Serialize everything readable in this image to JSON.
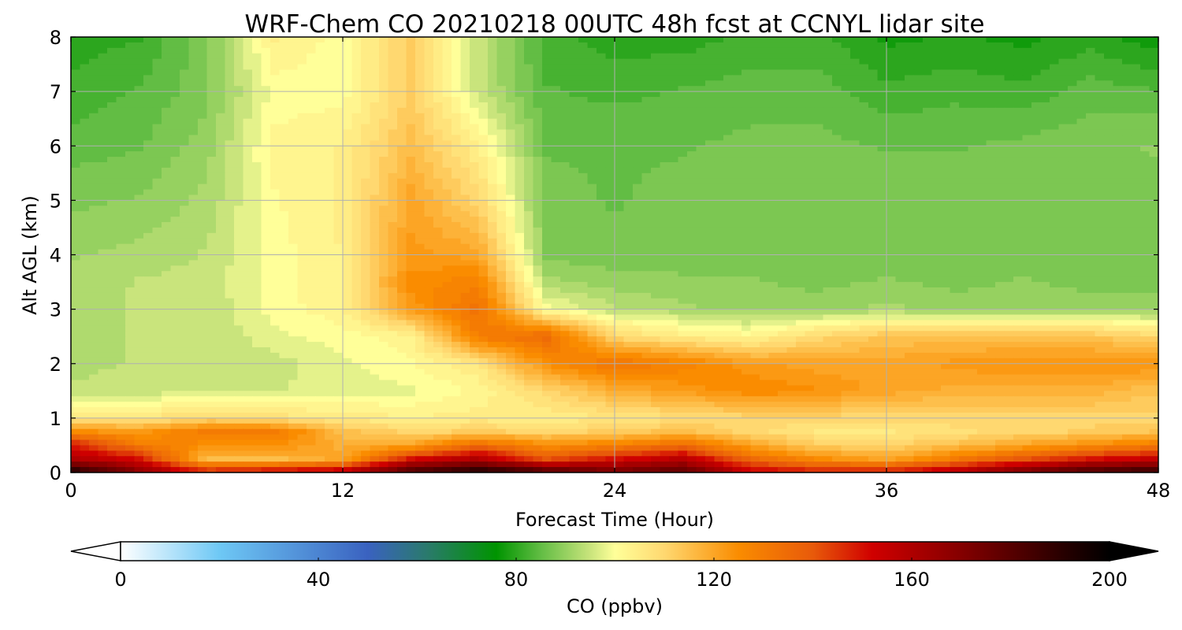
{
  "chart_data": {
    "type": "heatmap",
    "title": "WRF-Chem CO  20210218 00UTC 48h fcst at CCNYL lidar site",
    "xlabel": "Forecast Time (Hour)",
    "ylabel": "Alt AGL (km)",
    "xlim": [
      0,
      48
    ],
    "ylim": [
      0,
      8
    ],
    "xticks": [
      0,
      12,
      24,
      36,
      48
    ],
    "yticks": [
      0,
      1,
      2,
      3,
      4,
      5,
      6,
      7,
      8
    ],
    "grid": true,
    "x_hours": [
      0,
      3,
      6,
      9,
      12,
      15,
      18,
      21,
      24,
      27,
      30,
      33,
      36,
      39,
      42,
      45,
      48
    ],
    "y_km": [
      0,
      0.25,
      0.5,
      0.75,
      1.0,
      1.5,
      2.0,
      2.5,
      3.0,
      3.5,
      4.0,
      5.0,
      6.0,
      7.0,
      8.0
    ],
    "z_ppbv": [
      [
        195,
        170,
        150,
        155,
        160,
        185,
        195,
        185,
        175,
        180,
        155,
        150,
        150,
        160,
        175,
        185,
        190
      ],
      [
        160,
        150,
        115,
        115,
        120,
        150,
        160,
        140,
        150,
        158,
        135,
        125,
        120,
        130,
        140,
        150,
        155
      ],
      [
        150,
        130,
        125,
        125,
        118,
        120,
        135,
        125,
        128,
        135,
        120,
        112,
        110,
        115,
        120,
        125,
        130
      ],
      [
        125,
        122,
        130,
        130,
        115,
        110,
        112,
        110,
        112,
        115,
        110,
        106,
        106,
        108,
        110,
        112,
        114
      ],
      [
        106,
        106,
        110,
        108,
        105,
        104,
        105,
        104,
        106,
        108,
        110,
        110,
        110,
        110,
        110,
        110,
        110
      ],
      [
        94,
        95,
        95,
        96,
        98,
        98,
        102,
        110,
        118,
        122,
        126,
        124,
        120,
        118,
        118,
        118,
        114
      ],
      [
        93,
        94,
        94,
        95,
        98,
        101,
        106,
        125,
        132,
        128,
        122,
        120,
        120,
        122,
        124,
        124,
        124
      ],
      [
        93,
        94,
        94,
        98,
        100,
        103,
        130,
        135,
        110,
        105,
        102,
        110,
        114,
        115,
        114,
        114,
        110
      ],
      [
        93,
        94,
        94,
        100,
        103,
        122,
        133,
        100,
        94,
        92,
        90,
        90,
        92,
        90,
        90,
        90,
        90
      ],
      [
        92,
        94,
        95,
        100,
        104,
        125,
        128,
        92,
        90,
        89,
        89,
        88,
        89,
        88,
        89,
        88,
        88
      ],
      [
        91,
        92,
        94,
        100,
        104,
        122,
        120,
        88,
        87,
        88,
        88,
        88,
        88,
        88,
        88,
        88,
        88
      ],
      [
        88,
        89,
        92,
        101,
        104,
        120,
        110,
        87,
        86,
        87,
        88,
        88,
        88,
        88,
        88,
        88,
        88
      ],
      [
        85,
        86,
        90,
        102,
        104,
        115,
        104,
        86,
        86,
        86,
        87,
        87,
        86,
        86,
        87,
        88,
        89
      ],
      [
        82,
        84,
        88,
        100,
        100,
        112,
        95,
        84,
        83,
        84,
        85,
        85,
        82,
        83,
        82,
        85,
        84
      ],
      [
        80,
        81,
        88,
        104,
        100,
        112,
        95,
        82,
        80,
        80,
        82,
        82,
        78,
        79,
        78,
        80,
        77
      ]
    ],
    "colorbar": {
      "label": "CO  (ppbv)",
      "min": 0,
      "max": 200,
      "ticks": [
        0,
        40,
        80,
        120,
        160,
        200
      ],
      "extend": "both",
      "stops": [
        {
          "v": 0,
          "c": "#ffffff"
        },
        {
          "v": 20,
          "c": "#6ec8f5"
        },
        {
          "v": 50,
          "c": "#3a62c0"
        },
        {
          "v": 62,
          "c": "#2a7a6c"
        },
        {
          "v": 76,
          "c": "#009400"
        },
        {
          "v": 85,
          "c": "#62bd44"
        },
        {
          "v": 95,
          "c": "#c9e47c"
        },
        {
          "v": 100,
          "c": "#ffff99"
        },
        {
          "v": 110,
          "c": "#ffd870"
        },
        {
          "v": 125,
          "c": "#fa8c00"
        },
        {
          "v": 140,
          "c": "#e85a0a"
        },
        {
          "v": 152,
          "c": "#d00000"
        },
        {
          "v": 170,
          "c": "#840000"
        },
        {
          "v": 190,
          "c": "#2a0000"
        },
        {
          "v": 200,
          "c": "#000000"
        }
      ]
    }
  }
}
